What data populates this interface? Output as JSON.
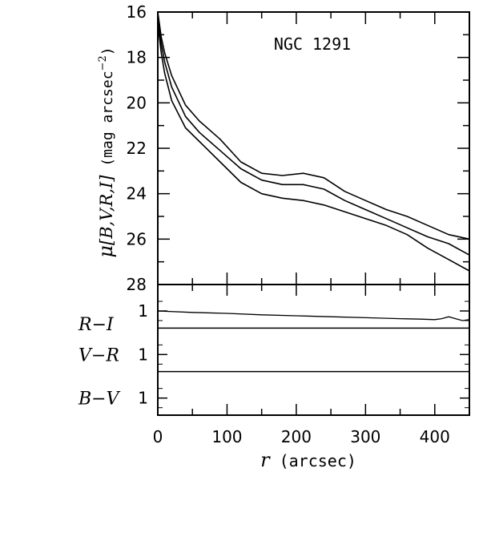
{
  "chart_data": [
    {
      "type": "line",
      "title": "NGC 1291",
      "xlabel_symbol": "r",
      "xlabel_rest": " (arcsec)",
      "ylabel_mu": "μ",
      "ylabel_bands": "[B,V,R,I]",
      "ylabel_units": " (mag arcsec",
      "ylabel_exp": "−2",
      "ylabel_close": ")",
      "xlim": [
        0,
        450
      ],
      "ylim": [
        28,
        16
      ],
      "yticks": [
        "16",
        "18",
        "20",
        "22",
        "24",
        "26",
        "28"
      ],
      "xticks": [
        "0",
        "100",
        "200",
        "300",
        "400"
      ],
      "series": [
        {
          "x": [
            0,
            5,
            10,
            20,
            40,
            60,
            90,
            120,
            150,
            180,
            210,
            240,
            270,
            300,
            330,
            360,
            390,
            420,
            450
          ],
          "y": [
            16.0,
            17.1,
            17.8,
            18.8,
            20.1,
            20.8,
            21.6,
            22.6,
            23.1,
            23.2,
            23.1,
            23.3,
            23.9,
            24.3,
            24.7,
            25.0,
            25.4,
            25.8,
            26.0
          ]
        },
        {
          "x": [
            0,
            5,
            10,
            20,
            40,
            60,
            90,
            120,
            150,
            180,
            210,
            240,
            270,
            300,
            330,
            360,
            390,
            420,
            450
          ],
          "y": [
            16.2,
            17.4,
            18.2,
            19.3,
            20.6,
            21.3,
            22.1,
            22.9,
            23.4,
            23.6,
            23.6,
            23.8,
            24.3,
            24.7,
            25.1,
            25.5,
            25.9,
            26.2,
            26.7
          ]
        },
        {
          "x": [
            0,
            5,
            10,
            20,
            40,
            60,
            90,
            120,
            150,
            180,
            210,
            240,
            270,
            300,
            330,
            360,
            390,
            420,
            450
          ],
          "y": [
            16.5,
            17.8,
            18.7,
            19.9,
            21.1,
            21.7,
            22.6,
            23.5,
            24.0,
            24.2,
            24.3,
            24.5,
            24.8,
            25.1,
            25.4,
            25.8,
            26.4,
            26.9,
            27.4
          ]
        }
      ]
    },
    {
      "type": "line",
      "xlim": [
        0,
        450
      ],
      "panels": [
        {
          "label": "R−I",
          "tick": "1",
          "series": [
            {
              "x": [
                0,
                50,
                100,
                150,
                200,
                250,
                300,
                350,
                380,
                400,
                410,
                420,
                430,
                440,
                450
              ],
              "y": [
                1.0,
                0.97,
                0.95,
                0.92,
                0.9,
                0.88,
                0.86,
                0.84,
                0.83,
                0.82,
                0.84,
                0.88,
                0.84,
                0.8,
                0.82
              ]
            }
          ]
        },
        {
          "label": "V−R",
          "tick": "1"
        },
        {
          "label": "B−V",
          "tick": "1"
        }
      ]
    }
  ]
}
